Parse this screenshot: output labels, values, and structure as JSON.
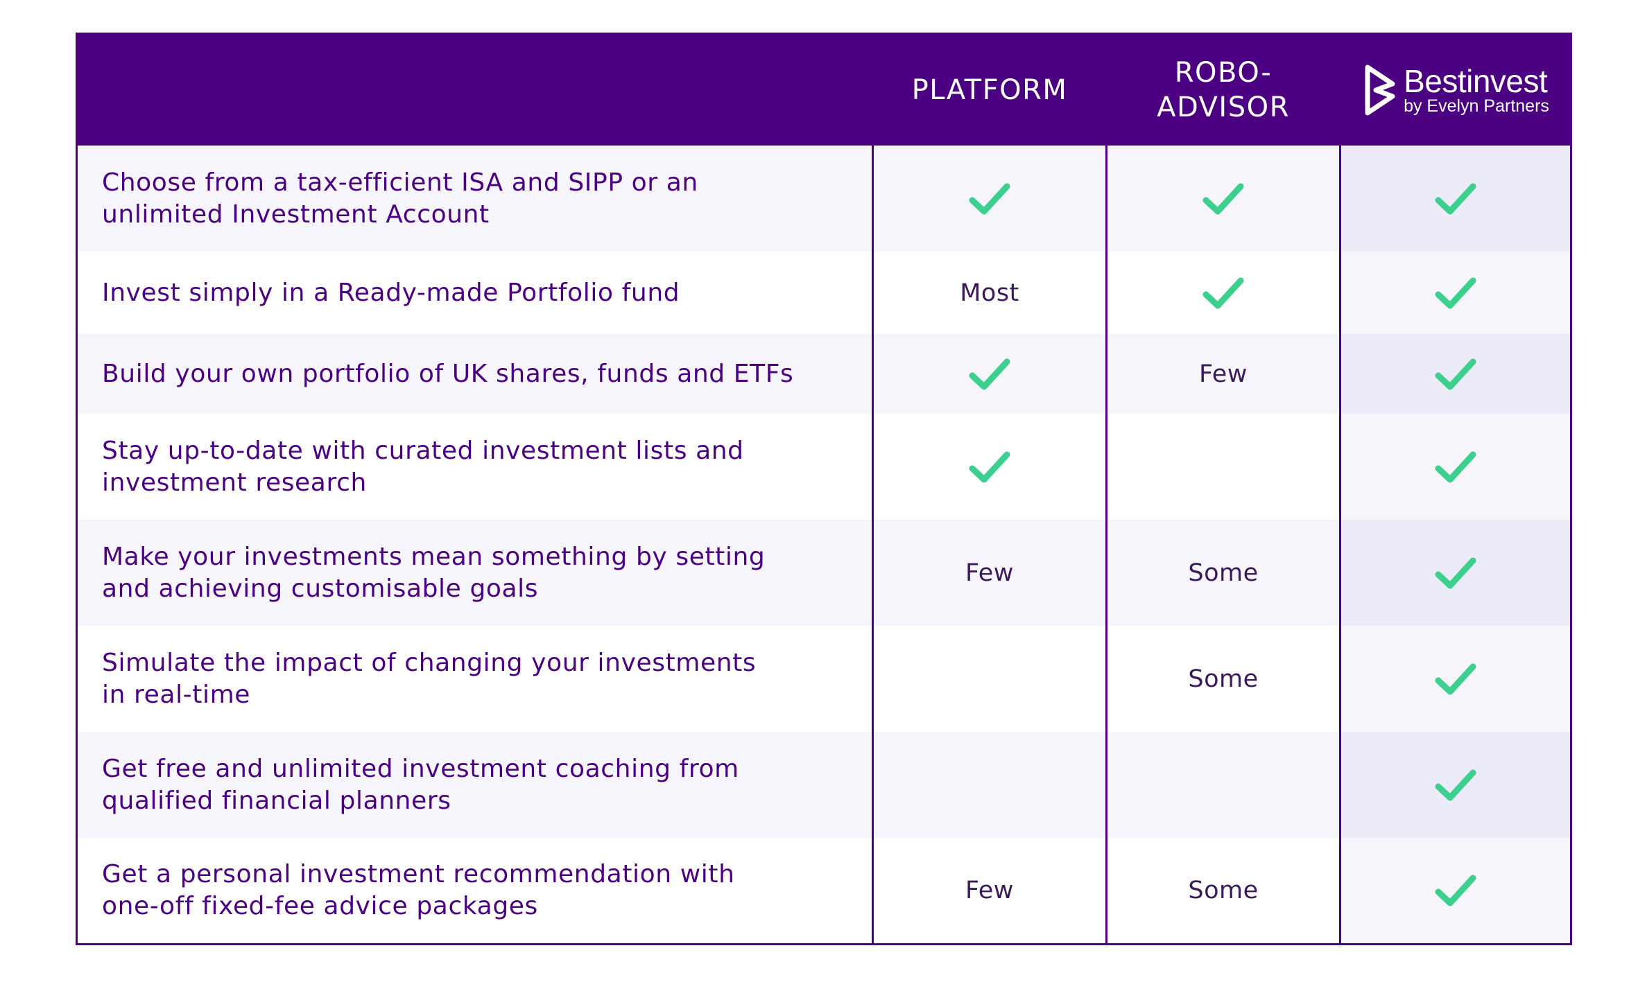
{
  "header": {
    "col_platform": "PLATFORM",
    "col_robo_line1": "ROBO-",
    "col_robo_line2": "ADVISOR",
    "logo_name": "Bestinvest",
    "logo_sub": "by Evelyn Partners"
  },
  "colors": {
    "brand_purple": "#4a0080",
    "check_green": "#3ccf8e"
  },
  "rows": [
    {
      "feature": "Choose from a tax-efficient ISA and SIPP or an\nunlimited Investment Account",
      "platform": "check",
      "robo": "check",
      "bestinvest": "check"
    },
    {
      "feature": "Invest simply in a Ready-made Portfolio fund",
      "platform": "Most",
      "robo": "check",
      "bestinvest": "check"
    },
    {
      "feature": "Build your own portfolio of UK shares, funds and ETFs",
      "platform": "check",
      "robo": "Few",
      "bestinvest": "check"
    },
    {
      "feature": "Stay up-to-date with curated investment lists and\ninvestment research",
      "platform": "check",
      "robo": "",
      "bestinvest": "check"
    },
    {
      "feature": "Make your investments mean something by setting\nand achieving customisable goals",
      "platform": "Few",
      "robo": "Some",
      "bestinvest": "check"
    },
    {
      "feature": "Simulate the impact of changing your investments\nin real-time",
      "platform": "",
      "robo": "Some",
      "bestinvest": "check"
    },
    {
      "feature": "Get free and unlimited investment coaching from\nqualified financial planners",
      "platform": "",
      "robo": "",
      "bestinvest": "check"
    },
    {
      "feature": "Get a personal investment recommendation with\none-off fixed-fee advice packages",
      "platform": "Few",
      "robo": "Some",
      "bestinvest": "check"
    }
  ]
}
